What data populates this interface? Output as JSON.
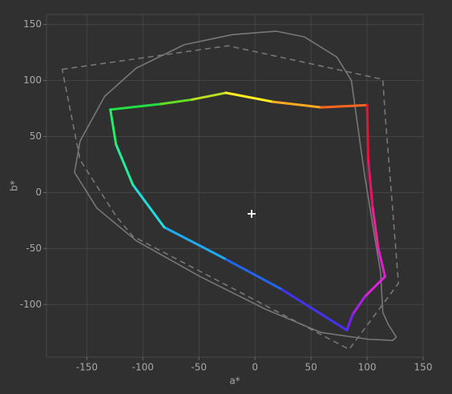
{
  "chart_data": {
    "type": "line",
    "xlabel": "a*",
    "ylabel": "b*",
    "xlim": [
      -186,
      150
    ],
    "ylim": [
      -147,
      159
    ],
    "xticks": [
      -150,
      -100,
      -50,
      0,
      50,
      100,
      150
    ],
    "yticks": [
      -100,
      -50,
      0,
      50,
      100,
      150
    ],
    "grid": true,
    "series": [
      {
        "color": "#777777",
        "style": "solid",
        "closed": true,
        "x": [
          -161,
          -156,
          -134,
          -106,
          -63,
          -20,
          19,
          44,
          73,
          86,
          91,
          98,
          105,
          112,
          114,
          119,
          126,
          123,
          101,
          59,
          9,
          -49,
          -106,
          -141
        ],
        "values": [
          18,
          46,
          86,
          111,
          132,
          141,
          144,
          139,
          121,
          100,
          64,
          14,
          -29,
          -71,
          -107,
          -118,
          -129,
          -132,
          -131,
          -125,
          -104,
          -75,
          -43,
          -14
        ]
      },
      {
        "color": "#777777",
        "style": "dashed",
        "closed": true,
        "x": [
          -172,
          -24,
          114,
          116,
          128,
          84,
          -109,
          -124,
          -156
        ],
        "values": [
          110,
          131,
          101,
          71,
          -81,
          -140,
          -39,
          -21,
          29
        ]
      },
      {
        "style": "solid",
        "closed": true,
        "x": [
          -129,
          -84,
          -56,
          -26,
          16,
          59,
          100,
          101,
          105,
          110,
          116,
          98,
          87,
          82,
          23,
          -27,
          -81,
          -109,
          -124
        ],
        "values": [
          74,
          79,
          83,
          89,
          81,
          76,
          78,
          29,
          -14,
          -50,
          -75,
          -93,
          -109,
          -123,
          -86,
          -59,
          -31,
          7,
          43
        ],
        "colors": [
          "#22dd44",
          "#66dd22",
          "#bbdd22",
          "#ffee22",
          "#ffaa22",
          "#ff6622",
          "#ee1133",
          "#ee1166",
          "#ee2299",
          "#dd22cc",
          "#dd22dd",
          "#aa22dd",
          "#7722ee",
          "#4433ee",
          "#2266ee",
          "#22aaee",
          "#22dddd",
          "#22ee99",
          "#22ee66"
        ]
      }
    ],
    "points": {
      "marker": "plus",
      "color": "#eeeeee",
      "x": [
        -3
      ],
      "values": [
        -19
      ]
    }
  }
}
